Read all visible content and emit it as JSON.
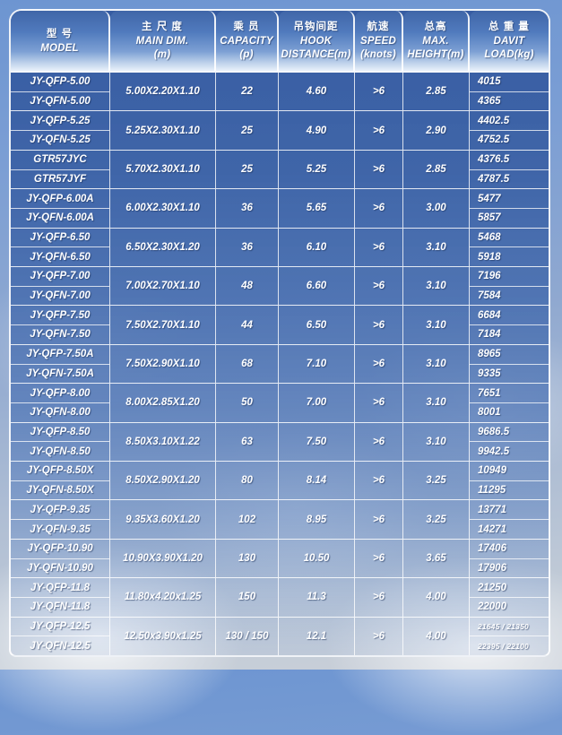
{
  "header": {
    "cols": [
      {
        "zh": "型 号",
        "en1": "MODEL",
        "en2": ""
      },
      {
        "zh": "主 尺 度",
        "en1": "MAIN DIM.",
        "en2": "(m)"
      },
      {
        "zh": "乘 员",
        "en1": "CAPACITY",
        "en2": "(p)"
      },
      {
        "zh": "吊钩间距",
        "en1": "HOOK",
        "en2": "DISTANCE(m)"
      },
      {
        "zh": "航速",
        "en1": "SPEED",
        "en2": "(knots)"
      },
      {
        "zh": "总高",
        "en1": "MAX.",
        "en2": "HEIGHT(m)"
      },
      {
        "zh": "总 重 量",
        "en1": "DAVIT",
        "en2": "LOAD(kg)"
      }
    ]
  },
  "table": {
    "rows": [
      {
        "models": [
          "JY-QFP-5.00",
          "JY-QFN-5.00"
        ],
        "dim": "5.00X2.20X1.10",
        "capacity": "22",
        "hook": "4.60",
        "speed": ">6",
        "height": "2.85",
        "loads": [
          "4015",
          "4365"
        ]
      },
      {
        "models": [
          "JY-QFP-5.25",
          "JY-QFN-5.25"
        ],
        "dim": "5.25X2.30X1.10",
        "capacity": "25",
        "hook": "4.90",
        "speed": ">6",
        "height": "2.90",
        "loads": [
          "4402.5",
          "4752.5"
        ]
      },
      {
        "models": [
          "GTR57JYC",
          "GTR57JYF"
        ],
        "dim": "5.70X2.30X1.10",
        "capacity": "25",
        "hook": "5.25",
        "speed": ">6",
        "height": "2.85",
        "loads": [
          "4376.5",
          "4787.5"
        ]
      },
      {
        "models": [
          "JY-QFP-6.00A",
          "JY-QFN-6.00A"
        ],
        "dim": "6.00X2.30X1.10",
        "capacity": "36",
        "hook": "5.65",
        "speed": ">6",
        "height": "3.00",
        "loads": [
          "5477",
          "5857"
        ]
      },
      {
        "models": [
          "JY-QFP-6.50",
          "JY-QFN-6.50"
        ],
        "dim": "6.50X2.30X1.20",
        "capacity": "36",
        "hook": "6.10",
        "speed": ">6",
        "height": "3.10",
        "loads": [
          "5468",
          "5918"
        ]
      },
      {
        "models": [
          "JY-QFP-7.00",
          "JY-QFN-7.00"
        ],
        "dim": "7.00X2.70X1.10",
        "capacity": "48",
        "hook": "6.60",
        "speed": ">6",
        "height": "3.10",
        "loads": [
          "7196",
          "7584"
        ]
      },
      {
        "models": [
          "JY-QFP-7.50",
          "JY-QFN-7.50"
        ],
        "dim": "7.50X2.70X1.10",
        "capacity": "44",
        "hook": "6.50",
        "speed": ">6",
        "height": "3.10",
        "loads": [
          "6684",
          "7184"
        ]
      },
      {
        "models": [
          "JY-QFP-7.50A",
          "JY-QFN-7.50A"
        ],
        "dim": "7.50X2.90X1.10",
        "capacity": "68",
        "hook": "7.10",
        "speed": ">6",
        "height": "3.10",
        "loads": [
          "8965",
          "9335"
        ]
      },
      {
        "models": [
          "JY-QFP-8.00",
          "JY-QFN-8.00"
        ],
        "dim": "8.00X2.85X1.20",
        "capacity": "50",
        "hook": "7.00",
        "speed": ">6",
        "height": "3.10",
        "loads": [
          "7651",
          "8001"
        ]
      },
      {
        "models": [
          "JY-QFP-8.50",
          "JY-QFN-8.50"
        ],
        "dim": "8.50X3.10X1.22",
        "capacity": "63",
        "hook": "7.50",
        "speed": ">6",
        "height": "3.10",
        "loads": [
          "9686.5",
          "9942.5"
        ]
      },
      {
        "models": [
          "JY-QFP-8.50X",
          "JY-QFN-8.50X"
        ],
        "dim": "8.50X2.90X1.20",
        "capacity": "80",
        "hook": "8.14",
        "speed": ">6",
        "height": "3.25",
        "loads": [
          "10949",
          "11295"
        ]
      },
      {
        "models": [
          "JY-QFP-9.35",
          "JY-QFN-9.35"
        ],
        "dim": "9.35X3.60X1.20",
        "capacity": "102",
        "hook": "8.95",
        "speed": ">6",
        "height": "3.25",
        "loads": [
          "13771",
          "14271"
        ]
      },
      {
        "models": [
          "JY-QFP-10.90",
          "JY-QFN-10.90"
        ],
        "dim": "10.90X3.90X1.20",
        "capacity": "130",
        "hook": "10.50",
        "speed": ">6",
        "height": "3.65",
        "loads": [
          "17406",
          "17906"
        ]
      },
      {
        "models": [
          "JY-QFP-11.8",
          "JY-QFN-11.8"
        ],
        "dim": "11.80x4.20x1.25",
        "capacity": "150",
        "hook": "11.3",
        "speed": ">6",
        "height": "4.00",
        "loads": [
          "21250",
          "22000"
        ]
      },
      {
        "models": [
          "JY-QFP-12.5",
          "JY-QFN-12.5"
        ],
        "dim": "12.50x3.90x1.25",
        "capacity": "130 / 150",
        "hook": "12.1",
        "speed": ">6",
        "height": "4.00",
        "loads": [
          "21645 / 21350",
          "22395 / 22100"
        ]
      }
    ]
  },
  "colors": {
    "header_top_blue": "#4066a8",
    "header_bottom_light": "#e9f1fa",
    "row_blue": "#4d75b6",
    "grid_line": "#ffffff",
    "text": "#ffffff",
    "sky_top": "#6d95d1",
    "sky_bottom": "#c9cfd8"
  }
}
